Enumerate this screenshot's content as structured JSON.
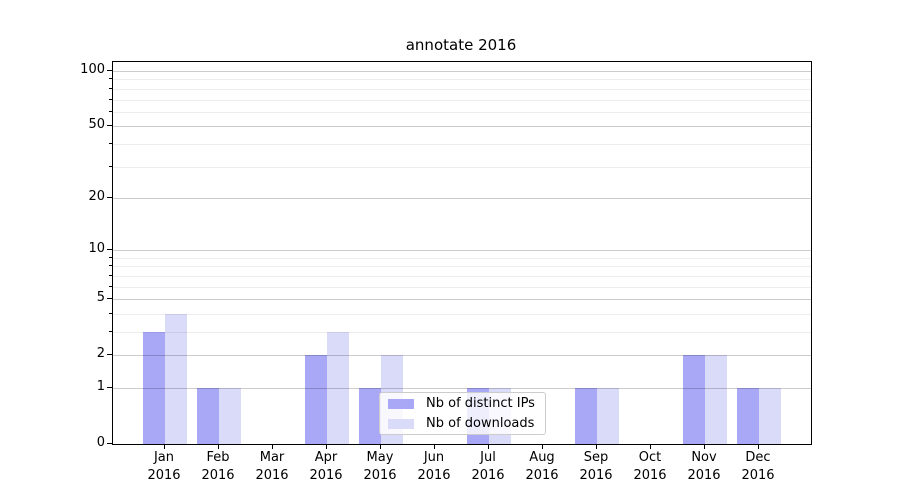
{
  "chart_data": {
    "type": "bar",
    "title": "annotate 2016",
    "categories": [
      "Jan\n2016",
      "Feb\n2016",
      "Mar\n2016",
      "Apr\n2016",
      "May\n2016",
      "Jun\n2016",
      "Jul\n2016",
      "Aug\n2016",
      "Sep\n2016",
      "Oct\n2016",
      "Nov\n2016",
      "Dec\n2016"
    ],
    "series": [
      {
        "name": "Nb of distinct IPs",
        "color": "#a8a8f6",
        "values": [
          3,
          1,
          0,
          2,
          1,
          0,
          1,
          0,
          1,
          0,
          2,
          1
        ]
      },
      {
        "name": "Nb of downloads",
        "color": "#dadaf9",
        "values": [
          4,
          1,
          0,
          3,
          2,
          0,
          1,
          0,
          1,
          0,
          2,
          1
        ]
      }
    ],
    "y_axis": {
      "scale": "log(value+1)",
      "major_ticks": [
        0,
        1,
        2,
        5,
        10,
        20,
        50,
        100
      ],
      "minor_ticks": [
        3,
        4,
        6,
        7,
        8,
        9,
        30,
        40,
        60,
        70,
        80,
        90
      ],
      "ylim": [
        0,
        112
      ]
    },
    "grid": true,
    "legend_position": "lower center-left inside plot",
    "colors": {
      "grid_major": "rgba(0,0,0,0.20)",
      "grid_minor": "rgba(0,0,0,0.07)",
      "spine": "#000000",
      "background": "#ffffff"
    }
  }
}
